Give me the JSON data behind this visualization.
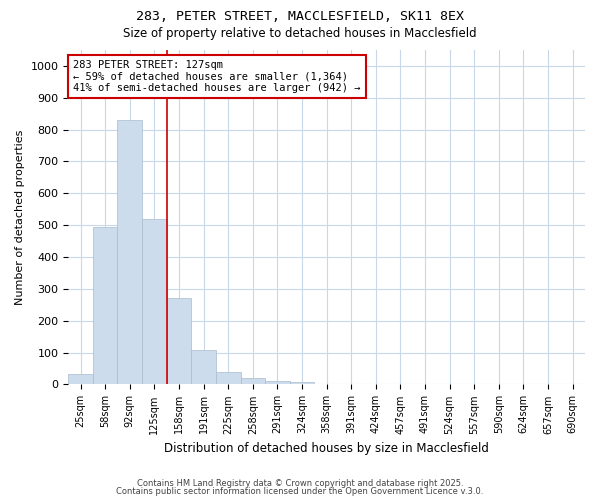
{
  "title1": "283, PETER STREET, MACCLESFIELD, SK11 8EX",
  "title2": "Size of property relative to detached houses in Macclesfield",
  "xlabel": "Distribution of detached houses by size in Macclesfield",
  "ylabel": "Number of detached properties",
  "bar_labels": [
    "25sqm",
    "58sqm",
    "92sqm",
    "125sqm",
    "158sqm",
    "191sqm",
    "225sqm",
    "258sqm",
    "291sqm",
    "324sqm",
    "358sqm",
    "391sqm",
    "424sqm",
    "457sqm",
    "491sqm",
    "524sqm",
    "557sqm",
    "590sqm",
    "624sqm",
    "657sqm",
    "690sqm"
  ],
  "bar_values": [
    33,
    493,
    830,
    520,
    270,
    108,
    40,
    20,
    10,
    8,
    0,
    0,
    0,
    0,
    0,
    0,
    0,
    0,
    0,
    0,
    0
  ],
  "bar_color": "#ccdcec",
  "bar_edgecolor": "#aabbcc",
  "ylim": [
    0,
    1050
  ],
  "yticks": [
    0,
    100,
    200,
    300,
    400,
    500,
    600,
    700,
    800,
    900,
    1000
  ],
  "property_bin_index": 3,
  "redline_color": "#cc0000",
  "annotation_text": "283 PETER STREET: 127sqm\n← 59% of detached houses are smaller (1,364)\n41% of semi-detached houses are larger (942) →",
  "annotation_box_facecolor": "#ffffff",
  "annotation_box_edgecolor": "#cc0000",
  "footer1": "Contains HM Land Registry data © Crown copyright and database right 2025.",
  "footer2": "Contains public sector information licensed under the Open Government Licence v.3.0.",
  "bg_color": "#ffffff",
  "axes_bg_color": "#ffffff",
  "grid_color": "#c8d8e8"
}
